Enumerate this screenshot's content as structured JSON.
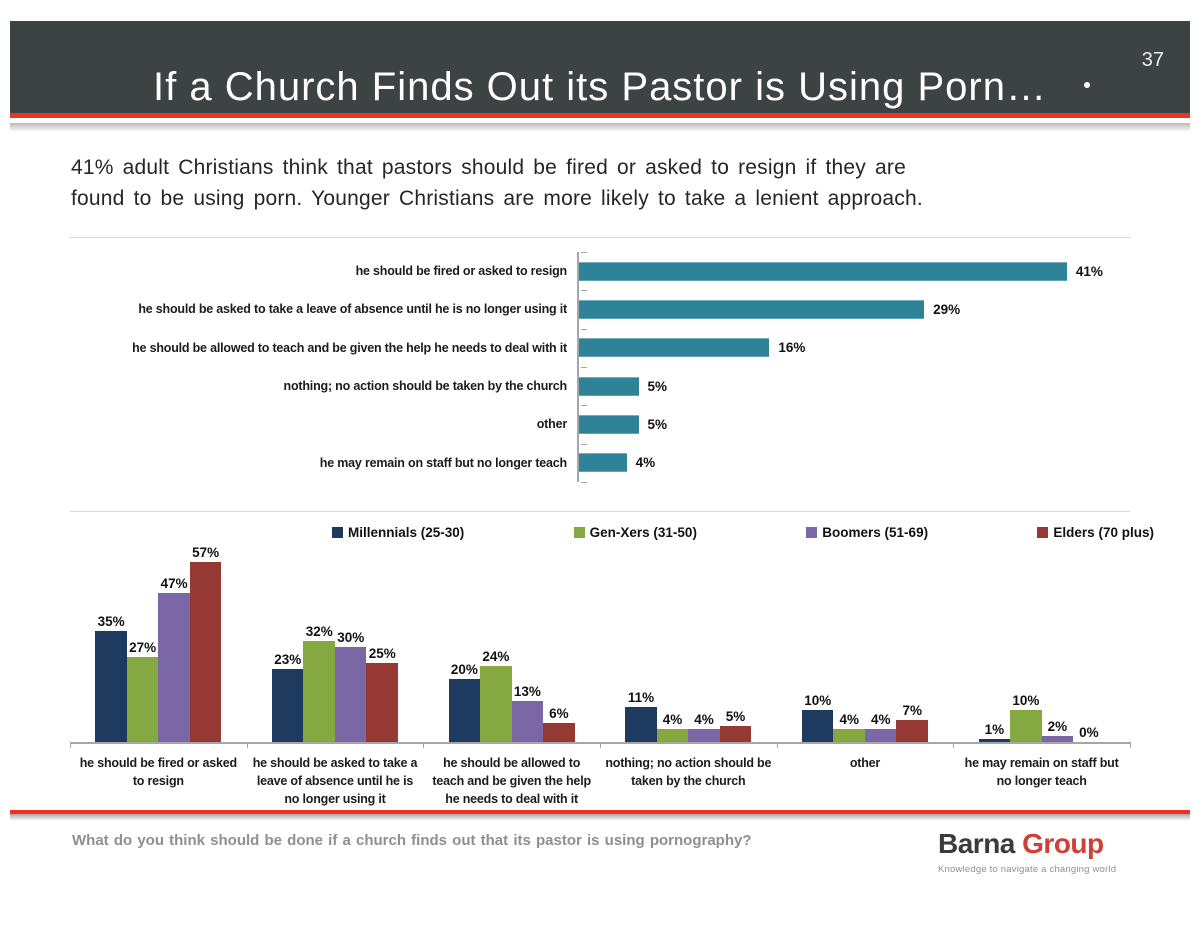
{
  "page": {
    "number": "37"
  },
  "header": {
    "title": "If a Church Finds Out its Pastor is Using Porn…"
  },
  "subtitle": {
    "line1": "41% adult Christians think that pastors should be fired or asked to resign if they are",
    "line2": "found to be using porn. Younger Christians are more likely to take a lenient approach."
  },
  "colors": {
    "header_bg": "#3d4242",
    "accent_red": "#e8362b",
    "teal": "#2e8399",
    "navy": "#1f3a5f",
    "green": "#85a940",
    "purple": "#7b67a5",
    "dark_red": "#963833",
    "axis_gray": "#a6a6a6",
    "divider_gray": "#d9d9d9"
  },
  "chart_data": [
    {
      "type": "bar",
      "orientation": "horizontal",
      "unit": "%",
      "bar_color": "#2e8399",
      "xlim": [
        0,
        45
      ],
      "categories": [
        "he should be fired or asked to resign",
        "he should be asked to take a leave of absence until he is no longer using it",
        "he should be allowed to teach and be given the help he needs to deal with it",
        "nothing; no action should be taken by the church",
        "other",
        "he may remain on staff but no longer teach"
      ],
      "values": [
        41,
        29,
        16,
        5,
        5,
        4
      ]
    },
    {
      "type": "bar",
      "orientation": "vertical",
      "grouped": true,
      "unit": "%",
      "ylim": [
        0,
        60
      ],
      "legend_position": "top",
      "categories": [
        "he should be fired or asked to resign",
        "he should be asked to take a leave of absence until he is no longer using it",
        "he should be allowed to teach and be given the help he needs to deal with it",
        "nothing; no action should be taken by the church",
        "other",
        "he may remain on staff but no longer teach"
      ],
      "series": [
        {
          "name": "Millennials (25-30)",
          "color": "#1f3a5f",
          "values": [
            35,
            23,
            20,
            11,
            10,
            1
          ]
        },
        {
          "name": "Gen-Xers (31-50)",
          "color": "#85a940",
          "values": [
            27,
            32,
            24,
            4,
            4,
            10
          ]
        },
        {
          "name": "Boomers (51-69)",
          "color": "#7b67a5",
          "values": [
            47,
            30,
            13,
            4,
            4,
            2
          ]
        },
        {
          "name": "Elders (70 plus)",
          "color": "#963833",
          "values": [
            57,
            25,
            6,
            5,
            7,
            0
          ]
        }
      ]
    }
  ],
  "footer": {
    "question": "What do you think should be done if a church finds out that its pastor is using pornography?",
    "logo": {
      "name_black": "Barna",
      "name_red": "Group",
      "tagline": "Knowledge to navigate a changing world"
    }
  }
}
